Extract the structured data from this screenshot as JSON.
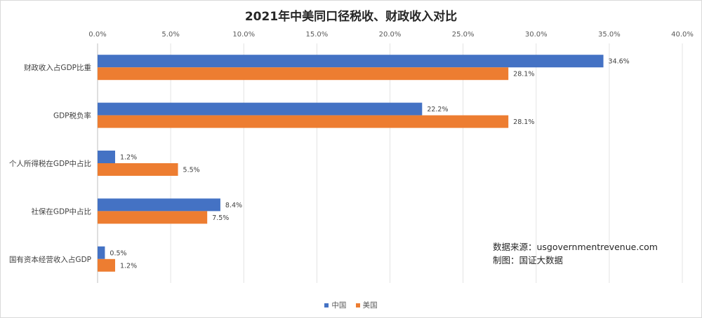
{
  "chart_data": {
    "type": "bar",
    "orientation": "horizontal",
    "title": "2021年中美同口径税收、财政收入对比",
    "categories": [
      "财政收入占GDP比重",
      "GDP税负率",
      "个人所得税在GDP中占比",
      "社保在GDP中占比",
      "国有资本经营收入占GDP"
    ],
    "series": [
      {
        "name": "中国",
        "values": [
          34.6,
          22.2,
          1.2,
          8.4,
          0.5
        ],
        "labels": [
          "34.6%",
          "22.2%",
          "1.2%",
          "8.4%",
          "0.5%"
        ],
        "color": "#4472C4"
      },
      {
        "name": "美国",
        "values": [
          28.1,
          28.1,
          5.5,
          7.5,
          1.2
        ],
        "labels": [
          "28.1%",
          "28.1%",
          "5.5%",
          "7.5%",
          "1.2%"
        ],
        "color": "#ED7D31"
      }
    ],
    "xlim": [
      0,
      40
    ],
    "xticks": [
      0,
      5,
      10,
      15,
      20,
      25,
      30,
      35,
      40
    ],
    "xtick_labels": [
      "0.0%",
      "5.0%",
      "10.0%",
      "15.0%",
      "20.0%",
      "25.0%",
      "30.0%",
      "35.0%",
      "40.0%"
    ],
    "x_axis_position": "top",
    "grid": true,
    "legend_position": "bottom"
  },
  "annotation": {
    "source_line": "数据来源：usgovernmentrevenue.com",
    "maker_line": "制图：国证大数据"
  }
}
